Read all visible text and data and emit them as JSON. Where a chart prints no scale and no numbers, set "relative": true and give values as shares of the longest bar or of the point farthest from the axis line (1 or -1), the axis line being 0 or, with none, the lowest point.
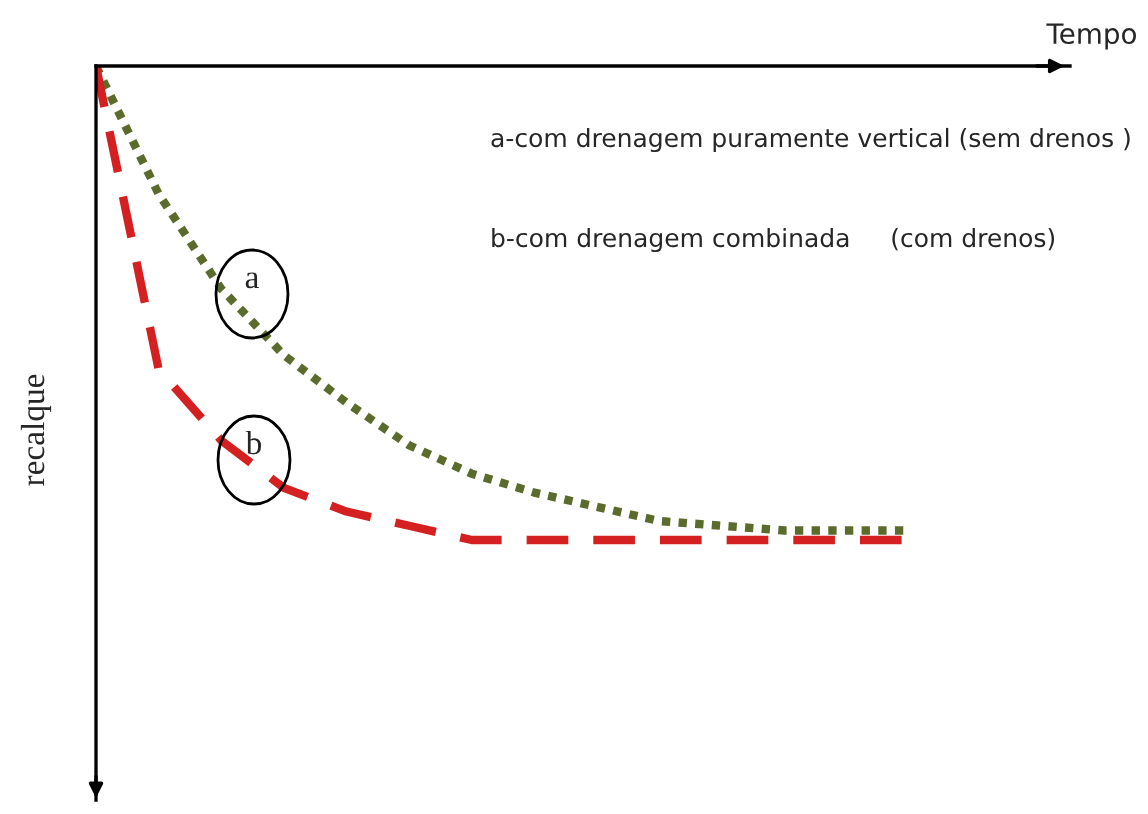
{
  "chart_data": {
    "type": "line",
    "relative": true,
    "xlabel": "Tempo",
    "ylabel": "recalque",
    "marker": "none",
    "categories": [
      null,
      null,
      null,
      null,
      null,
      null,
      null,
      null,
      null,
      null,
      null,
      null,
      null,
      null
    ],
    "annotations": [
      "a-com drenagem puramente vertical (sem drenos )",
      "b-com drenagem combinada     (com drenos)",
      "a",
      "b"
    ],
    "series": [
      {
        "color": "#5b6b2c",
        "line_style": "dotted",
        "values": [
          0,
          -0.27,
          -0.47,
          -0.61,
          -0.71,
          -0.8,
          -0.86,
          -0.9,
          -0.93,
          -0.96,
          -0.97,
          -0.98,
          -0.98,
          -0.98
        ]
      },
      {
        "color": "#d42020",
        "line_style": "dashed",
        "values": [
          0,
          -0.64,
          -0.79,
          -0.89,
          -0.94,
          -0.97,
          -1,
          -1,
          -1,
          -1,
          -1,
          -1,
          -1,
          -1
        ]
      }
    ]
  }
}
